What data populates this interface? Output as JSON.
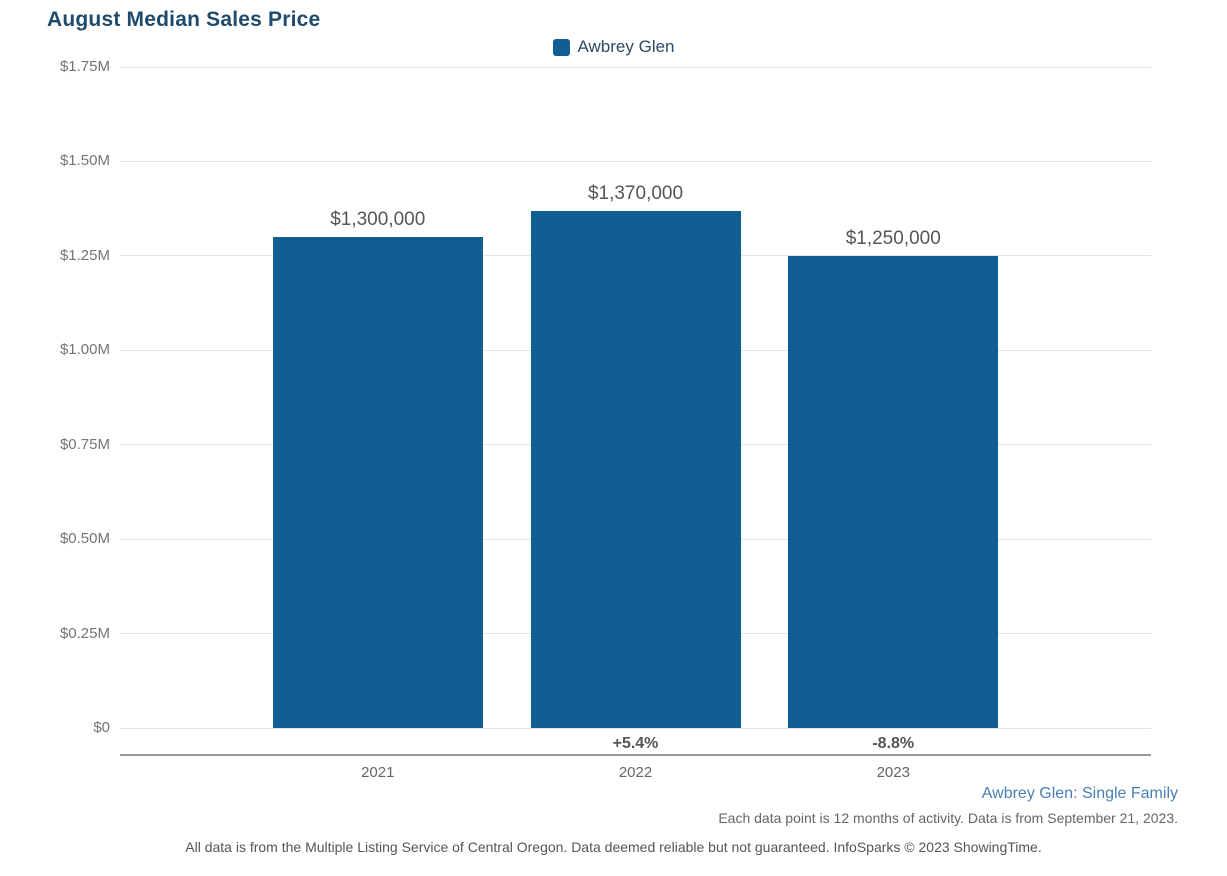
{
  "title": "August Median Sales Price",
  "legend": {
    "label": "Awbrey Glen",
    "swatch_color": "#115e93"
  },
  "chart_data": {
    "type": "bar",
    "title": "August Median Sales Price",
    "categories": [
      "2021",
      "2022",
      "2023"
    ],
    "series": [
      {
        "name": "Awbrey Glen",
        "values": [
          1300000,
          1370000,
          1250000
        ]
      }
    ],
    "value_labels": [
      "$1,300,000",
      "$1,370,000",
      "$1,250,000"
    ],
    "pct_change_labels": [
      "",
      "+5.4%",
      "-8.8%"
    ],
    "y_ticks": [
      "$0",
      "$0.25M",
      "$0.50M",
      "$0.75M",
      "$1.00M",
      "$1.25M",
      "$1.50M",
      "$1.75M"
    ],
    "ylim": [
      0,
      1750000
    ],
    "xlabel": "",
    "ylabel": "",
    "grid": true,
    "legend_position": "top-center",
    "bar_color": "#115e93"
  },
  "annotations": {
    "series_note": "Awbrey Glen: Single Family",
    "data_note": "Each data point is 12 months of activity. Data is from September 21, 2023.",
    "footer": "All data is from the Multiple Listing Service of Central Oregon. Data deemed reliable but not guaranteed. InfoSparks © 2023 ShowingTime."
  },
  "colors": {
    "bar": "#115e93",
    "title": "#1e4a6d",
    "note_link": "#4a7fb5",
    "gridline": "#e4e4e4",
    "axis_line": "#9a9a9a"
  }
}
